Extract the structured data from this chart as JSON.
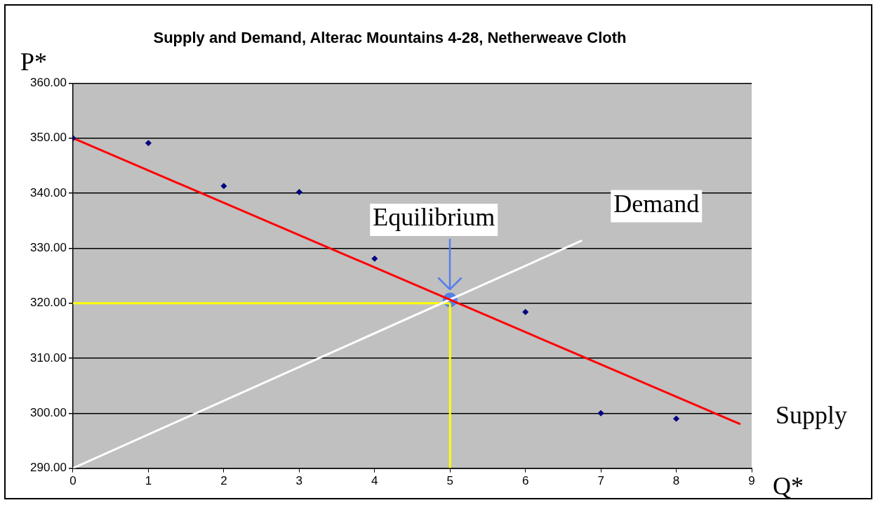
{
  "chart_data": {
    "type": "scatter",
    "title": "Supply and Demand, Alterac Mountains 4-28, Netherweave Cloth",
    "xlabel": "Q*",
    "ylabel": "P*",
    "xlim": [
      0,
      9
    ],
    "xticks": [
      0,
      1,
      2,
      3,
      4,
      5,
      6,
      7,
      8,
      9
    ],
    "ylim": [
      290,
      360
    ],
    "yticks": [
      {
        "value": 290,
        "label": "290.00"
      },
      {
        "value": 300,
        "label": "300.00"
      },
      {
        "value": 310,
        "label": "310.00"
      },
      {
        "value": 320,
        "label": "320.00"
      },
      {
        "value": 330,
        "label": "330.00"
      },
      {
        "value": 340,
        "label": "340.00"
      },
      {
        "value": 350,
        "label": "350.00"
      },
      {
        "value": 360,
        "label": "360.00"
      }
    ],
    "grid": "y",
    "legend": false,
    "marker": "diamond",
    "series": [
      {
        "type": "scatter",
        "color": "#000080",
        "x": [
          0,
          1,
          2,
          3,
          4,
          6,
          7,
          8
        ],
        "values": [
          350,
          349.1,
          341.3,
          340.2,
          328.1,
          318.4,
          300,
          299
        ]
      },
      {
        "type": "line",
        "color": "#ff0000",
        "marker": "none",
        "x": [
          0,
          8.85
        ],
        "values": [
          350,
          298
        ]
      },
      {
        "type": "line",
        "color": "#ffffff",
        "marker": "none",
        "x": [
          0,
          6.75
        ],
        "values": [
          290,
          331.4
        ]
      },
      {
        "type": "line",
        "color": "#ffff00",
        "marker": "none",
        "x": [
          0,
          5
        ],
        "values": [
          320,
          320
        ]
      },
      {
        "type": "line",
        "color": "#ffff00",
        "marker": "none",
        "x": [
          5,
          5
        ],
        "values": [
          290,
          320
        ]
      },
      {
        "type": "scatter",
        "color": "#5580e8",
        "marker": "circle",
        "x": [
          5
        ],
        "values": [
          320.6
        ]
      }
    ],
    "annotations": [
      {
        "text": "Equilibrium",
        "x": 5,
        "y": 320.6
      },
      {
        "text": "Demand",
        "x": 6.75,
        "y": 331.4
      },
      {
        "text": "Supply",
        "x": 8.85,
        "y": 298
      }
    ]
  }
}
